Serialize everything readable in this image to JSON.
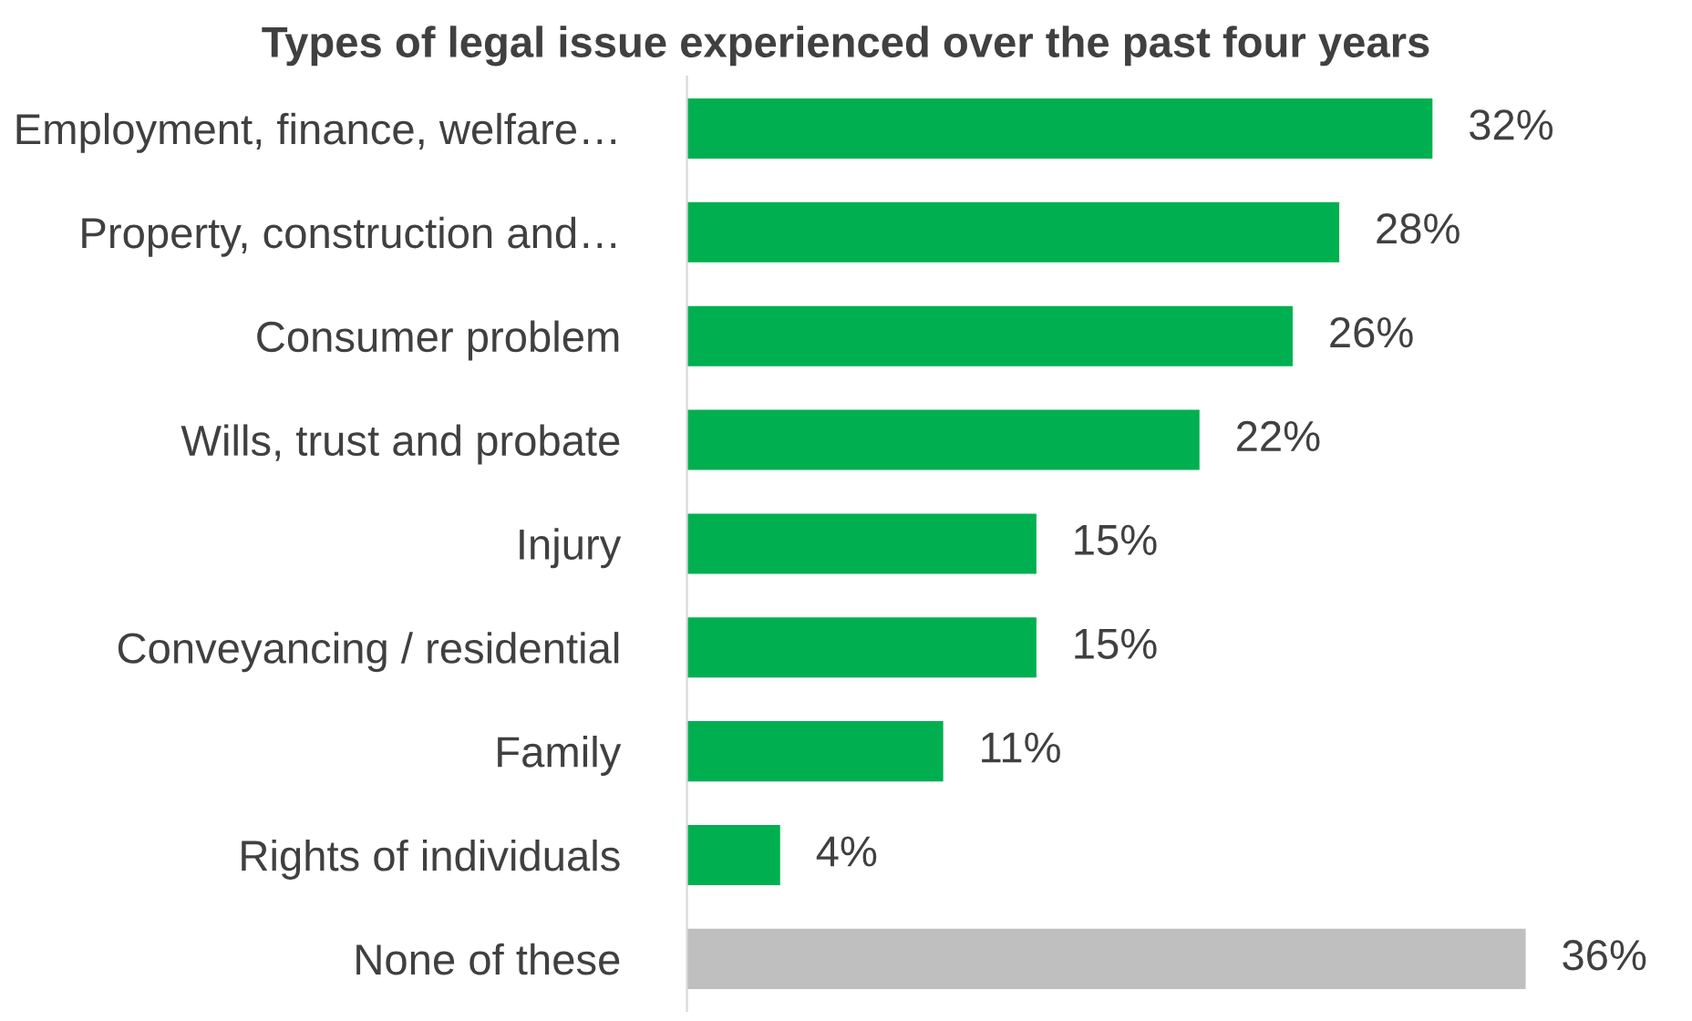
{
  "chart_data": {
    "type": "bar",
    "orientation": "horizontal",
    "title": "Types of legal issue experienced over the past four years",
    "categories": [
      "Employment, finance, welfare…",
      "Property, construction and…",
      "Consumer problem",
      "Wills, trust and probate",
      "Injury",
      "Conveyancing / residential",
      "Family",
      "Rights of individuals",
      "None of these"
    ],
    "values": [
      32,
      28,
      26,
      22,
      15,
      15,
      11,
      4,
      36
    ],
    "colors": [
      "#00b050",
      "#00b050",
      "#00b050",
      "#00b050",
      "#00b050",
      "#00b050",
      "#00b050",
      "#00b050",
      "#bfbfbf"
    ],
    "value_labels": [
      "32%",
      "28%",
      "26%",
      "22%",
      "15%",
      "15%",
      "11%",
      "4%",
      "36%"
    ],
    "grid": false,
    "legend": false
  }
}
